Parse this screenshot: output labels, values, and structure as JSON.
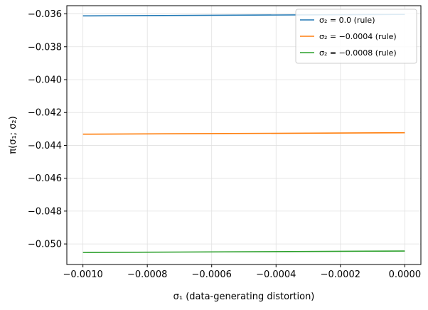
{
  "chart_data": {
    "type": "line",
    "xlabel": "σ₁ (data-generating distortion)",
    "ylabel": "π(σ₁; σ₂)",
    "xlim": [
      -0.00105,
      5e-05
    ],
    "ylim": [
      -0.05125,
      -0.0355
    ],
    "x_ticks": [
      "−0.0010",
      "−0.0008",
      "−0.0006",
      "−0.0004",
      "−0.0002",
      "0.0000"
    ],
    "x_tick_values": [
      -0.001,
      -0.0008,
      -0.0006,
      -0.0004,
      -0.0002,
      0.0
    ],
    "y_ticks": [
      "−0.036",
      "−0.038",
      "−0.040",
      "−0.042",
      "−0.044",
      "−0.046",
      "−0.048",
      "−0.050"
    ],
    "y_tick_values": [
      -0.036,
      -0.038,
      -0.04,
      -0.042,
      -0.044,
      -0.046,
      -0.048,
      -0.05
    ],
    "grid": true,
    "legend_position": "top-right",
    "series": [
      {
        "name": "σ₂ = 0.0 (rule)",
        "color": "#1f77b4",
        "x": [
          -0.001,
          0.0
        ],
        "y": [
          -0.03612,
          -0.03603
        ]
      },
      {
        "name": "σ₂ = −0.0004 (rule)",
        "color": "#ff7f0e",
        "x": [
          -0.001,
          0.0
        ],
        "y": [
          -0.04332,
          -0.04323
        ]
      },
      {
        "name": "σ₂ = −0.0008 (rule)",
        "color": "#2ca02c",
        "x": [
          -0.001,
          0.0
        ],
        "y": [
          -0.05052,
          -0.05043
        ]
      }
    ]
  }
}
